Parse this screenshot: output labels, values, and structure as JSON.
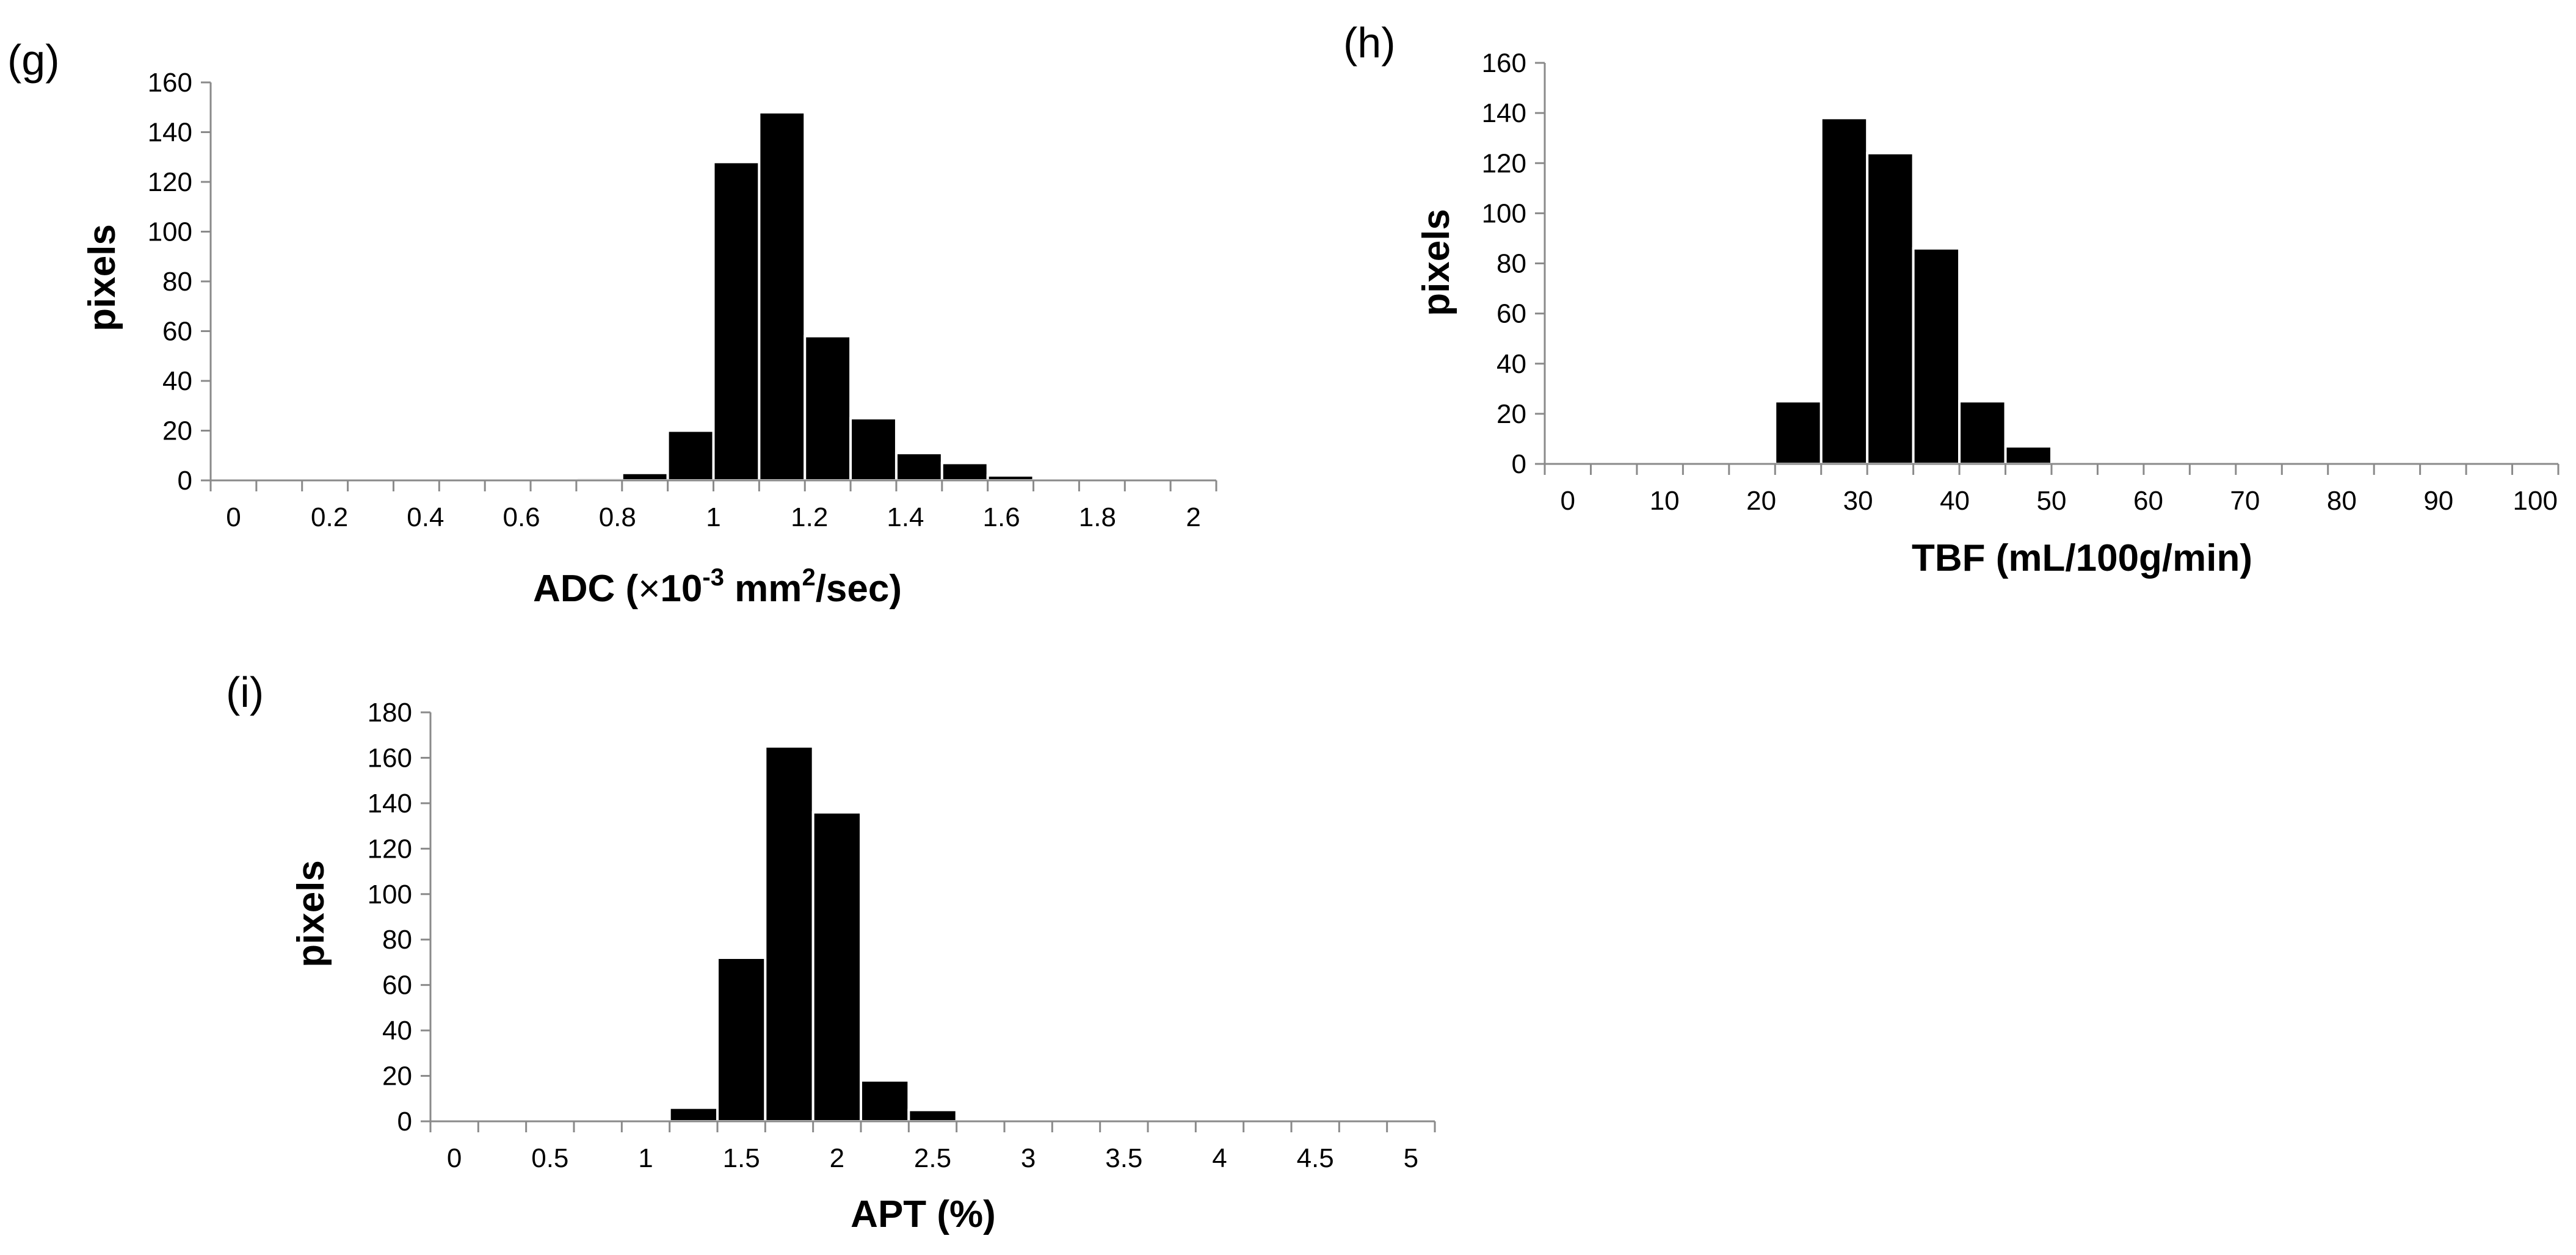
{
  "chart_data": [
    {
      "id": "g",
      "type": "bar",
      "panel_label": "(g)",
      "title": "",
      "ylabel": "pixels",
      "xlabel": {
        "prefix": "ADC (",
        "times": "×",
        "base": "10",
        "exp": "-3",
        "unit": " mm",
        "unit_exp": "2",
        "suffix": "/sec)"
      },
      "ylim": [
        0,
        160
      ],
      "yticks": [
        "0",
        "20",
        "40",
        "60",
        "80",
        "100",
        "120",
        "140",
        "160"
      ],
      "xlim": [
        -0.05,
        2.15
      ],
      "xtick_labels": [
        "0",
        "0.2",
        "0.4",
        "0.6",
        "0.8",
        "1",
        "1.2",
        "1.4",
        "1.6",
        "1.8",
        "2"
      ],
      "bin_width": 0.1,
      "bin_starts": [
        -0.05,
        0.05,
        0.15,
        0.25,
        0.35,
        0.45,
        0.55,
        0.65,
        0.75,
        0.85,
        0.95,
        1.05,
        1.15,
        1.25,
        1.35,
        1.45,
        1.55,
        1.65,
        1.75,
        1.85,
        1.95,
        2.05
      ],
      "values": [
        0,
        0,
        0,
        0,
        0,
        0,
        0,
        0,
        1,
        3,
        20,
        128,
        148,
        58,
        25,
        11,
        7,
        2,
        0,
        0,
        0,
        0
      ]
    },
    {
      "id": "h",
      "type": "bar",
      "panel_label": "(h)",
      "title": "",
      "ylabel": "pixels",
      "xlabel": "TBF (mL/100g/min)",
      "ylim": [
        0,
        160
      ],
      "yticks": [
        "0",
        "20",
        "40",
        "60",
        "80",
        "100",
        "120",
        "140",
        "160"
      ],
      "xlim": [
        -2.5,
        107.5
      ],
      "xtick_labels": [
        "0",
        "10",
        "20",
        "30",
        "40",
        "50",
        "60",
        "70",
        "80",
        "90",
        "100"
      ],
      "bin_width": 5,
      "bin_starts": [
        -2.5,
        2.5,
        7.5,
        12.5,
        17.5,
        22.5,
        27.5,
        32.5,
        37.5,
        42.5,
        47.5,
        52.5,
        57.5,
        62.5,
        67.5,
        72.5,
        77.5,
        82.5,
        87.5,
        92.5,
        97.5,
        102.5
      ],
      "values": [
        0,
        0,
        0,
        0,
        0,
        25,
        138,
        124,
        86,
        25,
        7,
        0,
        0,
        0,
        0,
        0,
        0,
        0,
        0,
        0,
        0,
        0
      ]
    },
    {
      "id": "i",
      "type": "bar",
      "panel_label": "(i)",
      "title": "",
      "ylabel": "pixels",
      "xlabel": "APT (%)",
      "ylim": [
        0,
        180
      ],
      "yticks": [
        "0",
        "20",
        "40",
        "60",
        "80",
        "100",
        "120",
        "140",
        "160",
        "180"
      ],
      "xlim": [
        -0.125,
        5.125
      ],
      "xtick_labels": [
        "0",
        "0.5",
        "1",
        "1.5",
        "2",
        "2.5",
        "3",
        "3.5",
        "4",
        "4.5",
        "5"
      ],
      "bin_width": 0.25,
      "bin_starts": [
        -0.125,
        0.125,
        0.375,
        0.625,
        0.875,
        1.125,
        1.375,
        1.625,
        1.875,
        2.125,
        2.375,
        2.625,
        2.875,
        3.125,
        3.375,
        3.625,
        3.875,
        4.125,
        4.375,
        4.625,
        4.875
      ],
      "values": [
        0,
        0,
        0,
        0,
        0,
        6,
        72,
        165,
        136,
        18,
        5,
        0,
        0,
        0,
        0,
        0,
        0,
        0,
        0,
        0,
        0
      ]
    }
  ],
  "colors": {
    "bar": "#000000",
    "bar_edge": "#ffffff",
    "axis": "#8a8a8a"
  }
}
